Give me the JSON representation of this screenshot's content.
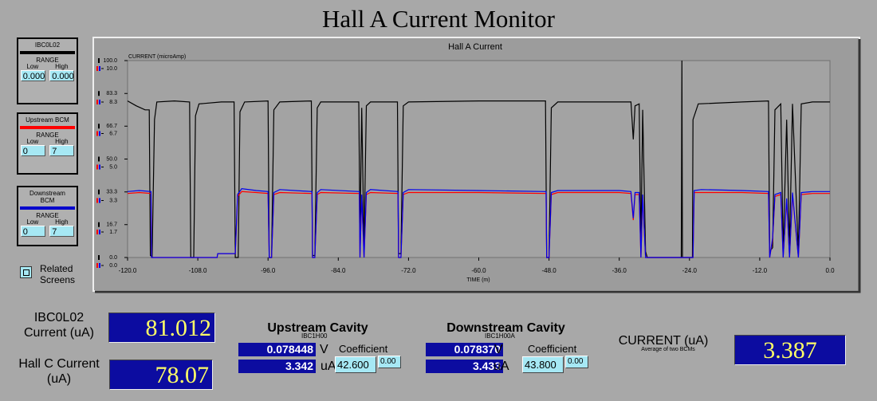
{
  "header": {
    "title": "Hall A Current Monitor"
  },
  "panels": [
    {
      "title": "IBC0L02",
      "color": "#000000",
      "range_label": "RANGE",
      "low_label": "Low",
      "high_label": "High",
      "low": "0.000",
      "high": "0.000"
    },
    {
      "title": "Upstream BCM",
      "color": "#ff0000",
      "range_label": "RANGE",
      "low_label": "Low",
      "high_label": "High",
      "low": "0",
      "high": "7"
    },
    {
      "title": "Downstream BCM",
      "color": "#0000cc",
      "range_label": "RANGE",
      "low_label": "Low",
      "high_label": "High",
      "low": "0",
      "high": "7"
    }
  ],
  "related": "Related Screens",
  "chart_data": {
    "type": "line",
    "title": "Hall A Current",
    "ylabel": "CURRENT (microAmp)",
    "xlabel": "TIME (m)",
    "xlim": [
      -120,
      0
    ],
    "ylim": [
      0,
      100
    ],
    "y2lim": [
      0,
      10
    ],
    "xticks": [
      {
        "value": -120,
        "label": "-120.0"
      },
      {
        "value": -108,
        "label": "-108.0"
      },
      {
        "value": -96,
        "label": "-96.0"
      },
      {
        "value": -84,
        "label": "-84.0"
      },
      {
        "value": -72,
        "label": "-72.0"
      },
      {
        "value": -60,
        "label": "-60.0"
      },
      {
        "value": -48,
        "label": "-48.0"
      },
      {
        "value": -36,
        "label": "-36.0"
      },
      {
        "value": -24,
        "label": "-24.0"
      },
      {
        "value": -12,
        "label": "-12.0"
      },
      {
        "value": 0,
        "label": "0.0"
      }
    ],
    "yticks": [
      {
        "value": 0,
        "label": "0.0"
      },
      16.7,
      33.3,
      {
        "value": 50,
        "label": "50.0"
      },
      66.7,
      83.3,
      {
        "value": 100,
        "label": "100.0"
      }
    ],
    "y2ticks": [
      {
        "value": 0,
        "label": "0.0"
      },
      1.7,
      3.3,
      {
        "value": 5,
        "label": "5.0"
      },
      6.7,
      8.3,
      {
        "value": 10,
        "label": "10.0"
      }
    ],
    "series": [
      {
        "name": "IBC0L02",
        "color": "#000000",
        "axis": "y",
        "x": [
          -120,
          -118.5,
          -117,
          -116.3,
          -116.1,
          -115.8,
          -115.4,
          -115,
          -112,
          -109.4,
          -109.2,
          -108.7,
          -108.4,
          -107.8,
          -104,
          -101.8,
          -101.6,
          -101.1,
          -100.8,
          -100,
          -96,
          -95.8,
          -95.4,
          -95,
          -94,
          -88.6,
          -88.4,
          -88,
          -87.6,
          -87,
          -80.5,
          -80.3,
          -80,
          -79.6,
          -79.2,
          -78.5,
          -73.9,
          -73.7,
          -73.3,
          -72.9,
          -72,
          -60,
          -48.6,
          -48.4,
          -48,
          -47.6,
          -46.5,
          -34,
          -33.6,
          -33.3,
          -32.6,
          -32.3,
          -32,
          -31.5,
          -31.2,
          -25.4,
          -25.3,
          -25.2,
          -23.5,
          -23.4,
          -22.5,
          -15,
          -10.5,
          -10.3,
          -9.8,
          -9.4,
          -8.4,
          -8,
          -7.4,
          -6.9,
          -6.4,
          -5.4,
          -4.9,
          -3,
          0
        ],
        "values": [
          79.5,
          77,
          75,
          75,
          1,
          0.5,
          70,
          79,
          79.5,
          79,
          0,
          0,
          72,
          78,
          79,
          79,
          0,
          0,
          74,
          79,
          79.5,
          0,
          0,
          75,
          79,
          79.5,
          1,
          1,
          76,
          79,
          79,
          10,
          76,
          5,
          77,
          79,
          79,
          2,
          2,
          77,
          79,
          79.5,
          79.5,
          0,
          0,
          76,
          79,
          79,
          60,
          77,
          78,
          5,
          75,
          3,
          0,
          0,
          100,
          0,
          0,
          70,
          78,
          79,
          79.5,
          3,
          5,
          75,
          78,
          3,
          70,
          4,
          78,
          2,
          78,
          79,
          79
        ]
      },
      {
        "name": "Upstream BCM",
        "color": "#ff0000",
        "axis": "y2",
        "x": [
          -120,
          -118,
          -116,
          -115.9,
          -104.7,
          -104.6,
          -101.6,
          -101.2,
          -100.5,
          -98,
          -96,
          -95.8,
          -95.4,
          -95,
          -94,
          -88.5,
          -88.4,
          -88,
          -87.6,
          -87,
          -80.4,
          -80.3,
          -80,
          -79.6,
          -79.2,
          -78.5,
          -73.8,
          -73.7,
          -73.3,
          -72.9,
          -72,
          -60,
          -48.5,
          -48.4,
          -48,
          -47.6,
          -46.5,
          -36,
          -34,
          -33.6,
          -33.3,
          -32.6,
          -32.3,
          -32,
          -31.5,
          -23.4,
          -23.2,
          -22,
          -15,
          -10.5,
          -10.3,
          -9.8,
          -9.4,
          -8.4,
          -8,
          -7.4,
          -6.9,
          -6.4,
          -5.4,
          -4.9,
          -3,
          0
        ],
        "values": [
          3.25,
          3.3,
          3.25,
          0,
          0,
          0.2,
          0.2,
          3.1,
          3.35,
          3.3,
          3.25,
          0,
          0,
          3.2,
          3.3,
          3.25,
          0,
          0,
          3.2,
          3.3,
          3.25,
          0,
          3.1,
          0,
          3.2,
          3.3,
          3.25,
          0,
          0,
          3.2,
          3.3,
          3.3,
          3.25,
          0,
          0,
          3.2,
          3.3,
          3.3,
          3.25,
          1.9,
          3.2,
          3.2,
          0,
          3.1,
          0,
          0,
          3.3,
          3.3,
          3.3,
          3.25,
          0,
          0.9,
          3.1,
          3.2,
          0,
          2.9,
          0,
          3.2,
          0,
          3.2,
          3.25,
          3.25
        ]
      },
      {
        "name": "Downstream BCM",
        "color": "#0000ee",
        "axis": "y2",
        "x": [
          -120,
          -118,
          -116,
          -115.9,
          -104.7,
          -104.6,
          -101.6,
          -101.2,
          -100.5,
          -98,
          -96,
          -95.8,
          -95.4,
          -95,
          -94,
          -88.5,
          -88.4,
          -88,
          -87.6,
          -87,
          -80.4,
          -80.3,
          -80,
          -79.6,
          -79.2,
          -78.5,
          -73.8,
          -73.7,
          -73.3,
          -72.9,
          -72,
          -60,
          -48.5,
          -48.4,
          -48,
          -47.6,
          -46.5,
          -36,
          -34,
          -33.6,
          -33.3,
          -32.6,
          -32.3,
          -32,
          -31.5,
          -23.4,
          -23.2,
          -22,
          -15,
          -10.5,
          -10.3,
          -9.8,
          -9.4,
          -8.4,
          -8,
          -7.4,
          -6.9,
          -6.4,
          -5.4,
          -4.9,
          -3,
          0
        ],
        "values": [
          3.35,
          3.4,
          3.35,
          0,
          0,
          0.2,
          0.2,
          3.2,
          3.5,
          3.4,
          3.35,
          0,
          0,
          3.3,
          3.45,
          3.35,
          0,
          0,
          3.3,
          3.45,
          3.35,
          0,
          3.2,
          0,
          3.3,
          3.45,
          3.35,
          0,
          0,
          3.3,
          3.45,
          3.4,
          3.35,
          0,
          0,
          3.3,
          3.4,
          3.4,
          3.35,
          2,
          3.3,
          3.3,
          0,
          3.2,
          0,
          0,
          3.4,
          3.45,
          3.4,
          3.35,
          0,
          1,
          3.2,
          3.3,
          0,
          3,
          0,
          3.3,
          0,
          3.3,
          3.35,
          3.35
        ]
      }
    ]
  },
  "readouts": {
    "ibc0l02": {
      "label": "IBC0L02 Current (uA)",
      "value": "81.012"
    },
    "hallc": {
      "label": "Hall C Current (uA)",
      "value": "78.07"
    },
    "upstream": {
      "title": "Upstream Cavity",
      "device": "IBC1H00",
      "voltage": "0.078448",
      "voltage_unit": "V",
      "coefficient_label": "Coefficient",
      "current": "3.342",
      "current_unit": "uA",
      "coefficient": "42.600",
      "offset": "0.00"
    },
    "downstream": {
      "title": "Downstream Cavity",
      "device": "IBC1H00A",
      "voltage": "0.078370",
      "voltage_unit": "V",
      "coefficient_label": "Coefficient",
      "current": "3.433",
      "current_unit": "uA",
      "coefficient": "43.800",
      "offset": "0.00"
    },
    "average": {
      "label": "CURRENT (uA)",
      "note": "Average of two BCMs",
      "value": "3.387"
    }
  }
}
